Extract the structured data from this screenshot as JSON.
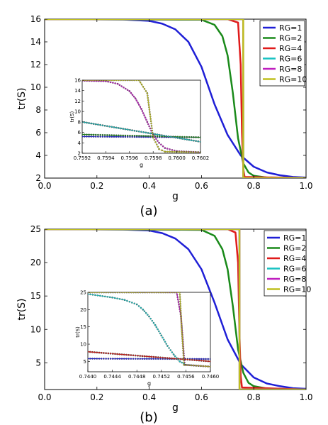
{
  "colors": {
    "RG=1": "#1f1fd6",
    "RG=2": "#1a8a1a",
    "RG=4": "#e01b1b",
    "RG=6": "#19c2c2",
    "RG=8": "#bf1fbf",
    "RG=10": "#bfbf1f"
  },
  "chart_data": [
    {
      "type": "line",
      "panel_label": "(a)",
      "xlabel": "g",
      "ylabel": "tr(S)",
      "xlim": [
        0.0,
        1.0
      ],
      "ylim": [
        2,
        16
      ],
      "xticks": [
        0.0,
        0.2,
        0.4,
        0.6,
        0.8,
        1.0
      ],
      "yticks": [
        2,
        4,
        6,
        8,
        10,
        12,
        14,
        16
      ],
      "grid": false,
      "legend": "top-right",
      "series": [
        {
          "name": "RG=1",
          "x": [
            0.0,
            0.3,
            0.4,
            0.45,
            0.5,
            0.55,
            0.6,
            0.65,
            0.7,
            0.75,
            0.8,
            0.85,
            0.9,
            0.95,
            1.0
          ],
          "y": [
            16,
            15.97,
            15.85,
            15.6,
            15.1,
            14.0,
            11.8,
            8.5,
            5.8,
            4.0,
            3.0,
            2.5,
            2.25,
            2.1,
            2.05
          ]
        },
        {
          "name": "RG=2",
          "x": [
            0.0,
            0.6,
            0.65,
            0.68,
            0.7,
            0.72,
            0.74,
            0.76,
            0.78,
            0.8,
            0.85,
            1.0
          ],
          "y": [
            16,
            15.95,
            15.5,
            14.5,
            12.8,
            9.5,
            5.5,
            3.3,
            2.5,
            2.2,
            2.05,
            2.0
          ]
        },
        {
          "name": "RG=4",
          "x": [
            0.0,
            0.7,
            0.74,
            0.75,
            0.755,
            0.76,
            0.765,
            1.0
          ],
          "y": [
            16,
            16,
            15.7,
            12.0,
            6.0,
            2.8,
            2.1,
            2.0
          ]
        },
        {
          "name": "RG=6",
          "x": [
            0.0,
            0.7595,
            0.7598,
            0.7601,
            1.0
          ],
          "y": [
            16,
            16,
            9,
            2,
            2
          ]
        },
        {
          "name": "RG=8",
          "x": [
            0.0,
            0.7596,
            0.7598,
            0.7599,
            1.0
          ],
          "y": [
            16,
            16,
            9,
            2,
            2
          ]
        },
        {
          "name": "RG=10",
          "x": [
            0.0,
            0.7597,
            0.7598,
            0.7599,
            1.0
          ],
          "y": [
            16,
            16,
            9,
            2,
            2
          ]
        }
      ],
      "inset": {
        "xlabel": "g",
        "ylabel": "tr(S)",
        "xlim": [
          0.7592,
          0.7602
        ],
        "ylim": [
          2,
          16
        ],
        "xticks": [
          0.7592,
          0.7594,
          0.7596,
          0.7598,
          0.76,
          0.7602
        ],
        "xtick_labels": [
          "0.7592",
          "0.7594",
          "0.7596",
          "0.7598",
          "0.7600",
          "0.7602"
        ],
        "yticks": [
          2,
          4,
          6,
          8,
          10,
          12,
          14,
          16
        ],
        "series": [
          {
            "name": "RG=1",
            "x": [
              0.7592,
              0.7602
            ],
            "y": [
              5.2,
              5.05
            ]
          },
          {
            "name": "RG=2",
            "x": [
              0.7592,
              0.7602
            ],
            "y": [
              5.6,
              5.05
            ]
          },
          {
            "name": "RG=4",
            "x": [
              0.7592,
              0.7602
            ],
            "y": [
              8.0,
              4.2
            ]
          },
          {
            "name": "RG=6",
            "x": [
              0.7592,
              0.7602
            ],
            "y": [
              8.0,
              4.2
            ]
          },
          {
            "name": "RG=8",
            "x": [
              0.7592,
              0.7594,
              0.7595,
              0.7596,
              0.75965,
              0.7597,
              0.75975,
              0.7598,
              0.75985,
              0.7599,
              0.76,
              0.7602
            ],
            "y": [
              15.9,
              15.8,
              15.3,
              13.9,
              12.5,
              10.5,
              8.0,
              5.5,
              4.0,
              3.0,
              2.4,
              2.2
            ]
          },
          {
            "name": "RG=10",
            "x": [
              0.7592,
              0.75968,
              0.75975,
              0.7598,
              0.75985,
              0.7599,
              0.7602
            ],
            "y": [
              16,
              16,
              13.5,
              5.0,
              2.8,
              2.3,
              2.2
            ]
          }
        ]
      }
    },
    {
      "type": "line",
      "panel_label": "(b)",
      "xlabel": "g",
      "ylabel": "tr(S)",
      "xlim": [
        0.0,
        1.0
      ],
      "ylim": [
        1,
        25
      ],
      "xticks": [
        0.0,
        0.2,
        0.4,
        0.6,
        0.8,
        1.0
      ],
      "yticks": [
        5,
        10,
        15,
        20,
        25
      ],
      "grid": false,
      "legend": "top-right",
      "series": [
        {
          "name": "RG=1",
          "x": [
            0.0,
            0.3,
            0.4,
            0.45,
            0.5,
            0.55,
            0.6,
            0.65,
            0.7,
            0.75,
            0.8,
            0.85,
            0.9,
            0.95,
            1.0
          ],
          "y": [
            25,
            24.95,
            24.8,
            24.4,
            23.6,
            22.0,
            19.0,
            14.0,
            8.5,
            4.8,
            2.8,
            1.9,
            1.5,
            1.2,
            1.1
          ]
        },
        {
          "name": "RG=2",
          "x": [
            0.0,
            0.6,
            0.65,
            0.68,
            0.7,
            0.72,
            0.74,
            0.76,
            0.78,
            0.8,
            0.85,
            1.0
          ],
          "y": [
            25,
            24.9,
            24.0,
            22.0,
            19.0,
            13.5,
            7.0,
            3.5,
            2.0,
            1.5,
            1.15,
            1.0
          ]
        },
        {
          "name": "RG=4",
          "x": [
            0.0,
            0.7,
            0.73,
            0.74,
            0.745,
            0.75,
            0.755,
            1.0
          ],
          "y": [
            25,
            25,
            24.5,
            20.0,
            10.0,
            3.0,
            1.3,
            1.0
          ]
        },
        {
          "name": "RG=6",
          "x": [
            0.0,
            0.7452,
            0.7455,
            0.7458,
            1.0
          ],
          "y": [
            25,
            25,
            13,
            1,
            1
          ]
        },
        {
          "name": "RG=8",
          "x": [
            0.0,
            0.7453,
            0.7455,
            0.7457,
            1.0
          ],
          "y": [
            25,
            25,
            13,
            1,
            1
          ]
        },
        {
          "name": "RG=10",
          "x": [
            0.0,
            0.7454,
            0.7455,
            0.7456,
            1.0
          ],
          "y": [
            25,
            25,
            13,
            1,
            1
          ]
        }
      ],
      "inset": {
        "xlabel": "g",
        "ylabel": "tr(S)",
        "xlim": [
          0.744,
          0.746
        ],
        "ylim": [
          2,
          25
        ],
        "xticks": [
          0.744,
          0.7444,
          0.7448,
          0.7452,
          0.7456,
          0.746
        ],
        "xtick_labels": [
          "0.7440",
          "0.7444",
          "0.7448",
          "0.7452",
          "0.7456",
          "0.7460"
        ],
        "yticks": [
          5,
          10,
          15,
          20,
          25
        ],
        "series": [
          {
            "name": "RG=1",
            "x": [
              0.744,
              0.746
            ],
            "y": [
              5.8,
              5.7
            ]
          },
          {
            "name": "RG=2",
            "x": [
              0.744,
              0.746
            ],
            "y": [
              7.8,
              5.0
            ]
          },
          {
            "name": "RG=4",
            "x": [
              0.744,
              0.746
            ],
            "y": [
              7.8,
              5.0
            ]
          },
          {
            "name": "RG=6",
            "x": [
              0.744,
              0.7444,
              0.7446,
              0.7448,
              0.7449,
              0.745,
              0.7451,
              0.7452,
              0.7453,
              0.7454,
              0.7455,
              0.7456,
              0.746
            ],
            "y": [
              24.5,
              23.5,
              22.8,
              21.5,
              20,
              18,
              15.5,
              12.5,
              9.5,
              7,
              5,
              4,
              3.5
            ]
          },
          {
            "name": "RG=8",
            "x": [
              0.744,
              0.74545,
              0.74552,
              0.74558,
              0.746
            ],
            "y": [
              25,
              25,
              18,
              4,
              3.5
            ]
          },
          {
            "name": "RG=10",
            "x": [
              0.744,
              0.7455,
              0.74553,
              0.74557,
              0.746
            ],
            "y": [
              25,
              25,
              15,
              4,
              3.5
            ]
          }
        ]
      }
    }
  ]
}
